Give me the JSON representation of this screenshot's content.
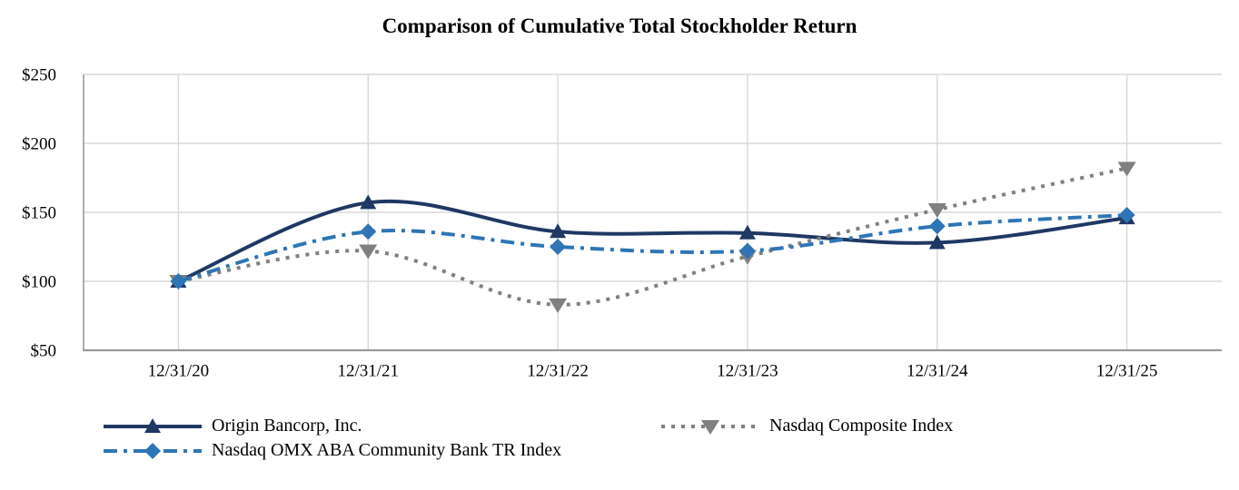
{
  "title": "Comparison of Cumulative Total Stockholder Return",
  "chart_data": {
    "type": "line",
    "title": "Comparison of Cumulative Total Stockholder Return",
    "categories": [
      "12/31/20",
      "12/31/21",
      "12/31/22",
      "12/31/23",
      "12/31/24",
      "12/31/25"
    ],
    "series": [
      {
        "name": "Origin Bancorp, Inc.",
        "color": "#1f3864",
        "line_style": "solid",
        "marker": "triangle-up",
        "values": [
          100,
          157,
          136,
          135,
          128,
          146
        ]
      },
      {
        "name": "Nasdaq OMX ABA Community Bank TR Index",
        "color": "#2e75b6",
        "line_style": "dash-dot",
        "marker": "diamond",
        "values": [
          100,
          136,
          125,
          122,
          140,
          148
        ]
      },
      {
        "name": "Nasdaq Composite Index",
        "color": "#808080",
        "line_style": "dotted",
        "marker": "triangle-down",
        "values": [
          100,
          122,
          83,
          118,
          152,
          182
        ]
      }
    ],
    "xlabel": "",
    "ylabel": "",
    "ylim": [
      50,
      250
    ],
    "yticks": [
      50,
      100,
      150,
      200,
      250
    ],
    "ytick_labels": [
      "$50",
      "$100",
      "$150",
      "$200",
      "$250"
    ],
    "grid": true,
    "smooth_lines": true,
    "legend_position": "bottom",
    "draw_order": [
      0,
      2,
      1
    ]
  },
  "colors": {
    "grid": "#d9d9d9",
    "axis": "#9a9a9a",
    "text": "#000000",
    "background": "#ffffff"
  }
}
